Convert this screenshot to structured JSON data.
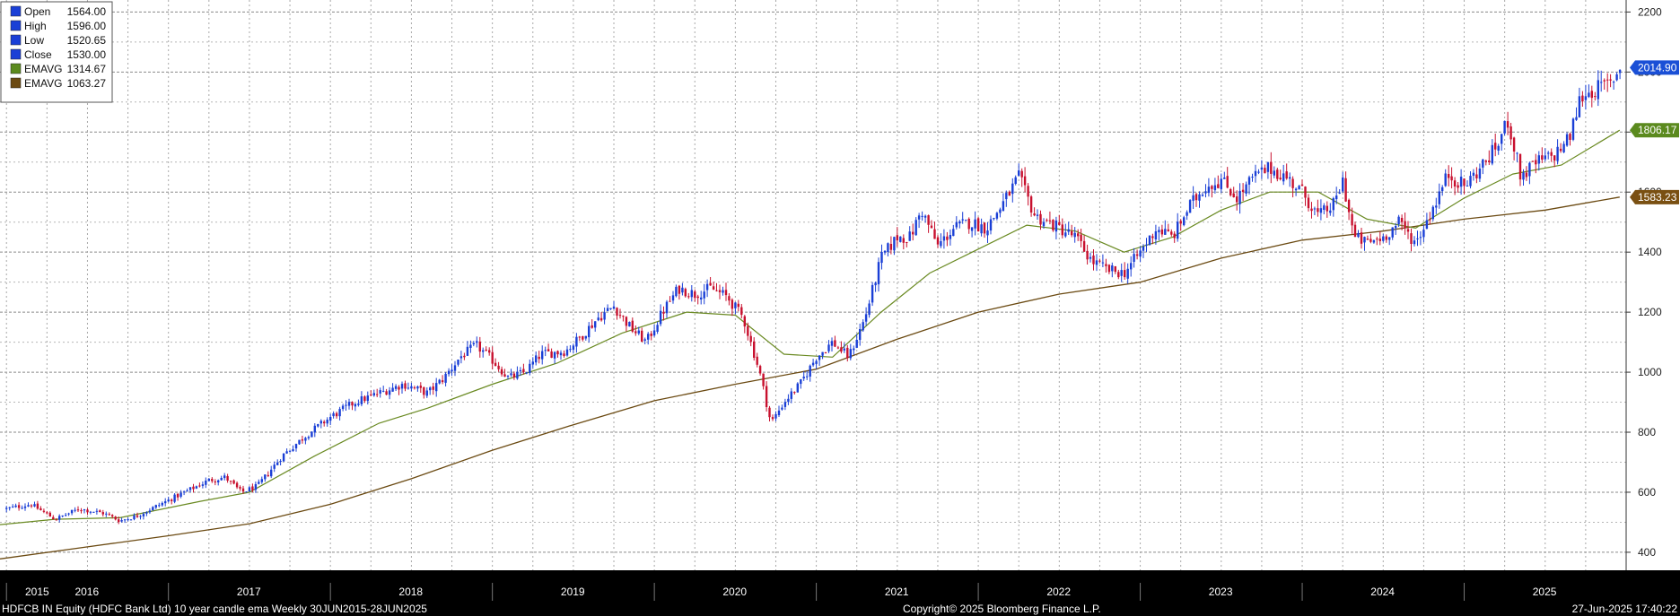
{
  "legend": [
    {
      "label": "Open",
      "value": "1564.00",
      "color": "#1a3fd6"
    },
    {
      "label": "High",
      "value": "1596.00",
      "color": "#1a3fd6"
    },
    {
      "label": "Low",
      "value": "1520.65",
      "color": "#1a3fd6"
    },
    {
      "label": "Close",
      "value": "1530.00",
      "color": "#1a3fd6"
    },
    {
      "label": "EMAVG",
      "value": "1314.67",
      "color": "#5b8a1e"
    },
    {
      "label": "EMAVG",
      "value": "1063.27",
      "color": "#6b4a12"
    }
  ],
  "price_tags": [
    {
      "value": "2014.90",
      "y": 2014.9,
      "color": "#1a4fd6"
    },
    {
      "value": "1806.17",
      "y": 1806.17,
      "color": "#5b8a1e"
    },
    {
      "value": "1583.23",
      "y": 1583.23,
      "color": "#7a5012"
    }
  ],
  "footer": {
    "left": "HDFCB IN Equity (HDFC Bank Ltd) 10 year candle ema  Weekly 30JUN2015-28JUN2025",
    "center": "Copyright© 2025 Bloomberg Finance L.P.",
    "right": "27-Jun-2025 17:40:22"
  },
  "chart_data": {
    "type": "candlestick",
    "y_ticks": [
      "400",
      "600",
      "800",
      "1000",
      "1200",
      "1400",
      "1600",
      "1800",
      "2000",
      "2200"
    ],
    "ylim": [
      340,
      2240
    ],
    "xlim": [
      2015.46,
      2025.5
    ],
    "year_labels": [
      "2015",
      "2016",
      "2017",
      "2018",
      "2019",
      "2020",
      "2021",
      "2022",
      "2023",
      "2024",
      "2025"
    ],
    "grid": true,
    "up_color": "#1a3fd6",
    "down_color": "#c8102e",
    "close_path": [
      [
        2015.5,
        545
      ],
      [
        2015.65,
        560
      ],
      [
        2015.8,
        510
      ],
      [
        2015.95,
        545
      ],
      [
        2016.1,
        530
      ],
      [
        2016.2,
        505
      ],
      [
        2016.3,
        520
      ],
      [
        2016.45,
        560
      ],
      [
        2016.6,
        600
      ],
      [
        2016.75,
        640
      ],
      [
        2016.85,
        650
      ],
      [
        2016.95,
        600
      ],
      [
        2017.05,
        620
      ],
      [
        2017.2,
        720
      ],
      [
        2017.35,
        790
      ],
      [
        2017.5,
        850
      ],
      [
        2017.65,
        900
      ],
      [
        2017.8,
        930
      ],
      [
        2017.95,
        960
      ],
      [
        2018.1,
        930
      ],
      [
        2018.2,
        980
      ],
      [
        2018.3,
        1050
      ],
      [
        2018.4,
        1090
      ],
      [
        2018.5,
        1040
      ],
      [
        2018.6,
        980
      ],
      [
        2018.7,
        1000
      ],
      [
        2018.8,
        1060
      ],
      [
        2018.95,
        1070
      ],
      [
        2019.05,
        1120
      ],
      [
        2019.15,
        1180
      ],
      [
        2019.25,
        1220
      ],
      [
        2019.35,
        1150
      ],
      [
        2019.45,
        1100
      ],
      [
        2019.55,
        1200
      ],
      [
        2019.65,
        1280
      ],
      [
        2019.75,
        1260
      ],
      [
        2019.85,
        1280
      ],
      [
        2019.95,
        1250
      ],
      [
        2020.05,
        1180
      ],
      [
        2020.15,
        1000
      ],
      [
        2020.22,
        830
      ],
      [
        2020.3,
        900
      ],
      [
        2020.4,
        960
      ],
      [
        2020.5,
        1050
      ],
      [
        2020.6,
        1100
      ],
      [
        2020.7,
        1050
      ],
      [
        2020.8,
        1180
      ],
      [
        2020.9,
        1380
      ],
      [
        2021.0,
        1450
      ],
      [
        2021.08,
        1450
      ],
      [
        2021.15,
        1540
      ],
      [
        2021.25,
        1420
      ],
      [
        2021.35,
        1480
      ],
      [
        2021.45,
        1500
      ],
      [
        2021.55,
        1480
      ],
      [
        2021.65,
        1560
      ],
      [
        2021.75,
        1650
      ],
      [
        2021.85,
        1520
      ],
      [
        2022.0,
        1480
      ],
      [
        2022.1,
        1450
      ],
      [
        2022.2,
        1370
      ],
      [
        2022.3,
        1340
      ],
      [
        2022.4,
        1330
      ],
      [
        2022.5,
        1400
      ],
      [
        2022.6,
        1480
      ],
      [
        2022.7,
        1450
      ],
      [
        2022.8,
        1550
      ],
      [
        2022.9,
        1620
      ],
      [
        2023.0,
        1640
      ],
      [
        2023.1,
        1580
      ],
      [
        2023.2,
        1650
      ],
      [
        2023.3,
        1680
      ],
      [
        2023.4,
        1650
      ],
      [
        2023.5,
        1600
      ],
      [
        2023.6,
        1520
      ],
      [
        2023.7,
        1560
      ],
      [
        2023.75,
        1640
      ],
      [
        2023.82,
        1450
      ],
      [
        2023.9,
        1430
      ],
      [
        2024.0,
        1450
      ],
      [
        2024.1,
        1500
      ],
      [
        2024.2,
        1430
      ],
      [
        2024.3,
        1540
      ],
      [
        2024.4,
        1660
      ],
      [
        2024.5,
        1620
      ],
      [
        2024.6,
        1680
      ],
      [
        2024.7,
        1750
      ],
      [
        2024.77,
        1840
      ],
      [
        2024.85,
        1650
      ],
      [
        2024.95,
        1700
      ],
      [
        2025.05,
        1720
      ],
      [
        2025.15,
        1780
      ],
      [
        2025.22,
        1920
      ],
      [
        2025.3,
        1940
      ],
      [
        2025.4,
        1960
      ],
      [
        2025.46,
        2014.9
      ]
    ],
    "ema_short": [
      [
        2015.46,
        492
      ],
      [
        2015.8,
        510
      ],
      [
        2016.2,
        515
      ],
      [
        2016.7,
        570
      ],
      [
        2017.0,
        600
      ],
      [
        2017.4,
        720
      ],
      [
        2017.8,
        830
      ],
      [
        2018.1,
        880
      ],
      [
        2018.5,
        960
      ],
      [
        2018.9,
        1030
      ],
      [
        2019.3,
        1130
      ],
      [
        2019.7,
        1200
      ],
      [
        2020.0,
        1190
      ],
      [
        2020.3,
        1060
      ],
      [
        2020.6,
        1050
      ],
      [
        2020.9,
        1200
      ],
      [
        2021.2,
        1330
      ],
      [
        2021.5,
        1410
      ],
      [
        2021.8,
        1490
      ],
      [
        2022.1,
        1470
      ],
      [
        2022.4,
        1400
      ],
      [
        2022.7,
        1450
      ],
      [
        2023.0,
        1540
      ],
      [
        2023.3,
        1600
      ],
      [
        2023.6,
        1600
      ],
      [
        2023.9,
        1510
      ],
      [
        2024.2,
        1480
      ],
      [
        2024.5,
        1580
      ],
      [
        2024.8,
        1660
      ],
      [
        2025.1,
        1690
      ],
      [
        2025.46,
        1806.17
      ]
    ],
    "ema_long": [
      [
        2015.46,
        378
      ],
      [
        2016.0,
        418
      ],
      [
        2016.5,
        455
      ],
      [
        2017.0,
        495
      ],
      [
        2017.5,
        560
      ],
      [
        2018.0,
        645
      ],
      [
        2018.5,
        740
      ],
      [
        2019.0,
        825
      ],
      [
        2019.5,
        905
      ],
      [
        2020.0,
        960
      ],
      [
        2020.5,
        1010
      ],
      [
        2021.0,
        1110
      ],
      [
        2021.5,
        1200
      ],
      [
        2022.0,
        1260
      ],
      [
        2022.5,
        1300
      ],
      [
        2023.0,
        1380
      ],
      [
        2023.5,
        1440
      ],
      [
        2024.0,
        1470
      ],
      [
        2024.5,
        1510
      ],
      [
        2025.0,
        1540
      ],
      [
        2025.46,
        1583.23
      ]
    ]
  }
}
